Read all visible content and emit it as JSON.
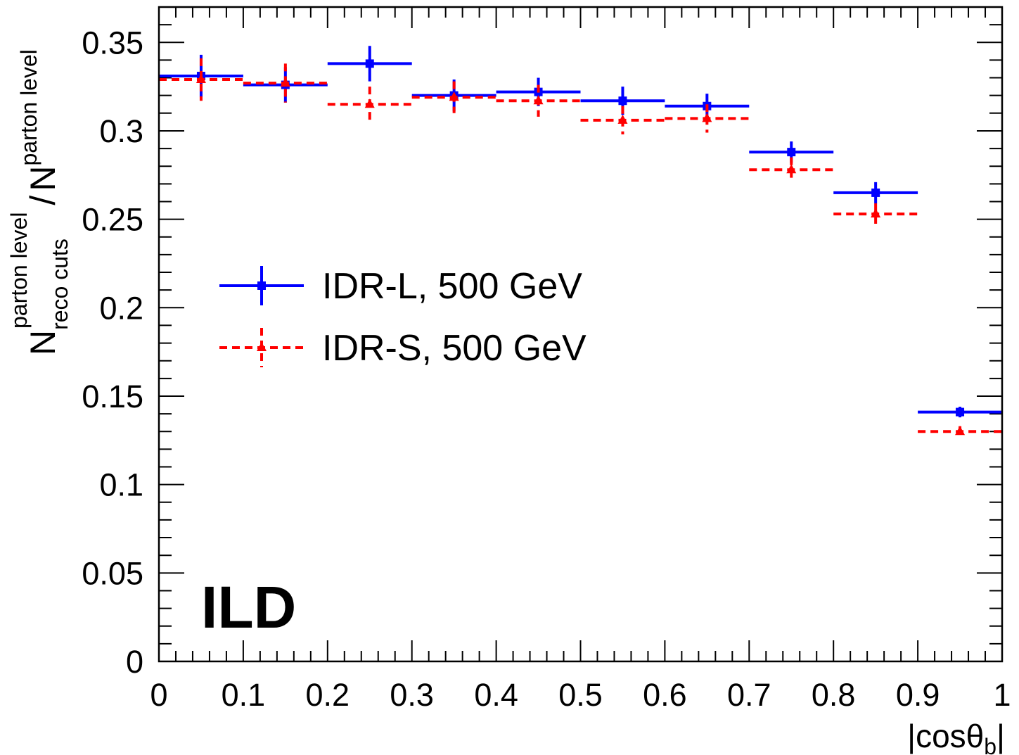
{
  "chart_data": {
    "type": "scatter",
    "title": "",
    "xlabel": {
      "main": "|cosθ",
      "sub": "b",
      "close": "|"
    },
    "ylabel": {
      "n1": "N",
      "n1_sup": "parton level",
      "n1_sub": "reco cuts",
      "slash": "/",
      "n2": "N",
      "n2_sup": "parton level"
    },
    "xlim": [
      0,
      1
    ],
    "ylim": [
      0,
      0.37
    ],
    "x_ticks": [
      0,
      0.1,
      0.2,
      0.3,
      0.4,
      0.5,
      0.6,
      0.7,
      0.8,
      0.9,
      1
    ],
    "x_tick_labels": [
      "0",
      "0.1",
      "0.2",
      "0.3",
      "0.4",
      "0.5",
      "0.6",
      "0.7",
      "0.8",
      "0.9",
      "1"
    ],
    "y_ticks": [
      0,
      0.05,
      0.1,
      0.15,
      0.2,
      0.25,
      0.3,
      0.35
    ],
    "y_tick_labels": [
      "0",
      "0.05",
      "0.1",
      "0.15",
      "0.2",
      "0.25",
      "0.3",
      "0.35"
    ],
    "grid": false,
    "legend_position": "middle-left",
    "annotation": "ILD",
    "series": [
      {
        "name": "IDR-L, 500 GeV",
        "color": "#0000ff",
        "marker": "square",
        "line_style": "solid",
        "x": [
          0.05,
          0.15,
          0.25,
          0.35,
          0.45,
          0.55,
          0.65,
          0.75,
          0.85,
          0.95
        ],
        "x_err": 0.05,
        "y": [
          0.331,
          0.326,
          0.338,
          0.32,
          0.322,
          0.317,
          0.314,
          0.288,
          0.265,
          0.141
        ],
        "y_err": [
          0.012,
          0.01,
          0.01,
          0.009,
          0.008,
          0.008,
          0.007,
          0.006,
          0.006,
          0.003
        ]
      },
      {
        "name": "IDR-S, 500 GeV",
        "color": "#ff0000",
        "marker": "triangle",
        "line_style": "dashed",
        "x": [
          0.05,
          0.15,
          0.25,
          0.35,
          0.45,
          0.55,
          0.65,
          0.75,
          0.85,
          0.95
        ],
        "x_err": 0.05,
        "y": [
          0.329,
          0.327,
          0.315,
          0.319,
          0.317,
          0.306,
          0.307,
          0.278,
          0.253,
          0.13
        ],
        "y_err": [
          0.012,
          0.011,
          0.01,
          0.009,
          0.009,
          0.008,
          0.008,
          0.007,
          0.006,
          0.003
        ]
      }
    ]
  }
}
